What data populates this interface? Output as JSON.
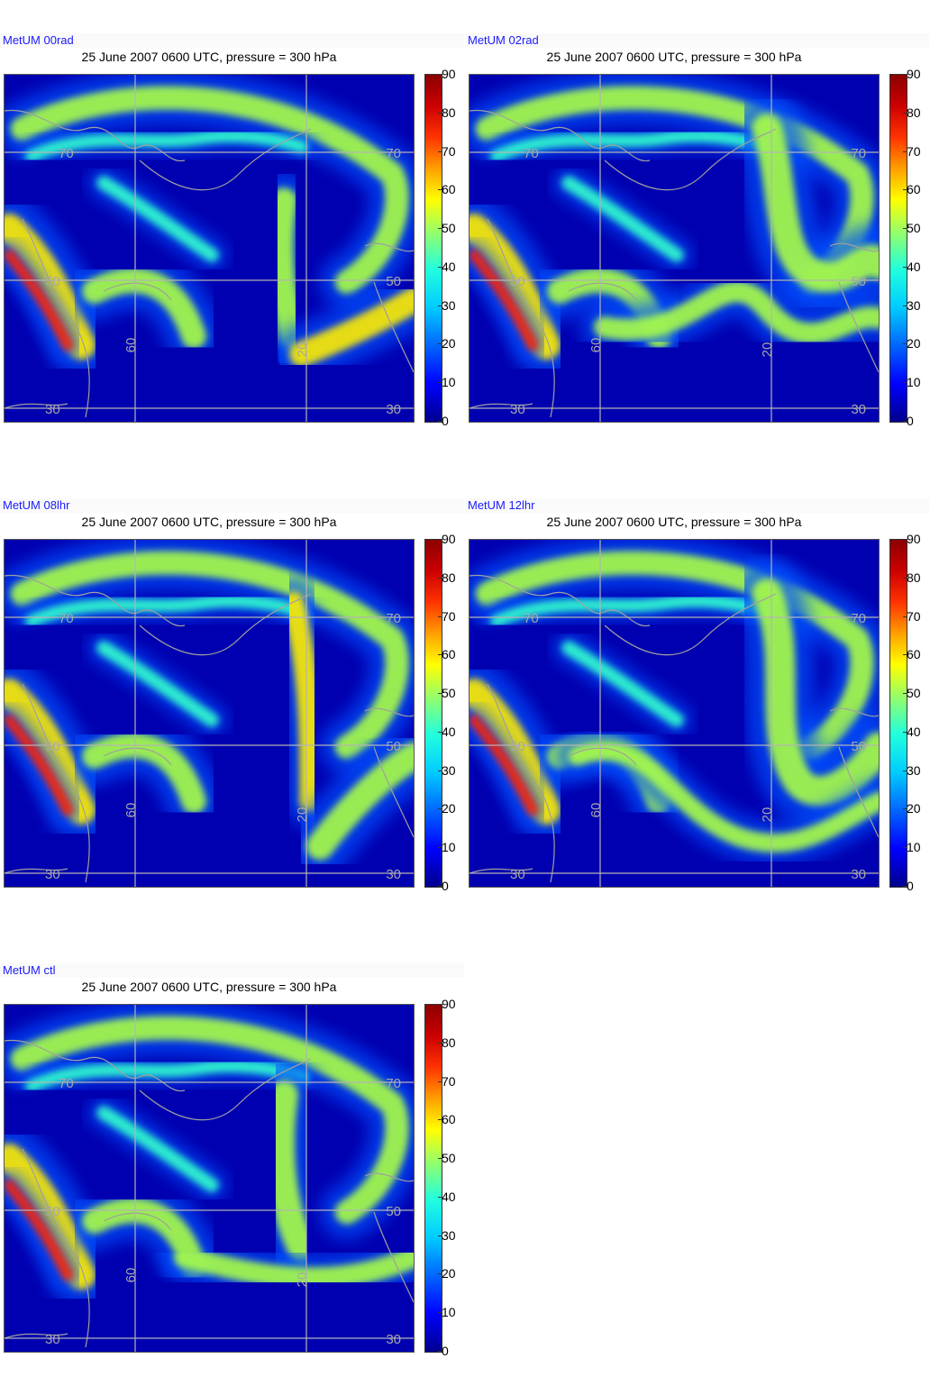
{
  "panels": [
    {
      "model": "MetUM 00rad",
      "title": "25 June 2007 0600 UTC, pressure = 300 hPa"
    },
    {
      "model": "MetUM 02rad",
      "title": "25 June 2007 0600 UTC, pressure = 300 hPa"
    },
    {
      "model": "MetUM 08lhr",
      "title": "25 June 2007 0600 UTC, pressure = 300 hPa"
    },
    {
      "model": "MetUM 12lhr",
      "title": "25 June 2007 0600 UTC, pressure = 300 hPa"
    },
    {
      "model": "MetUM ctl",
      "title": "25 June 2007 0600 UTC, pressure = 300 hPa"
    }
  ],
  "chart_data": {
    "type": "heatmap",
    "colorbar": {
      "min": 0,
      "max": 90,
      "ticks": [
        "0",
        "10",
        "20",
        "30",
        "40",
        "50",
        "60",
        "70",
        "80",
        "90"
      ]
    },
    "grid_labels": {
      "lat": [
        "70",
        "50",
        "30"
      ],
      "lon": [
        "60",
        "20"
      ]
    },
    "colormap": "jet"
  },
  "colors": {
    "label_blue": "#1a1aff",
    "background_field": "#0000b0",
    "grid_line": "#b4b4b4",
    "coastline": "#a0a0a0"
  }
}
